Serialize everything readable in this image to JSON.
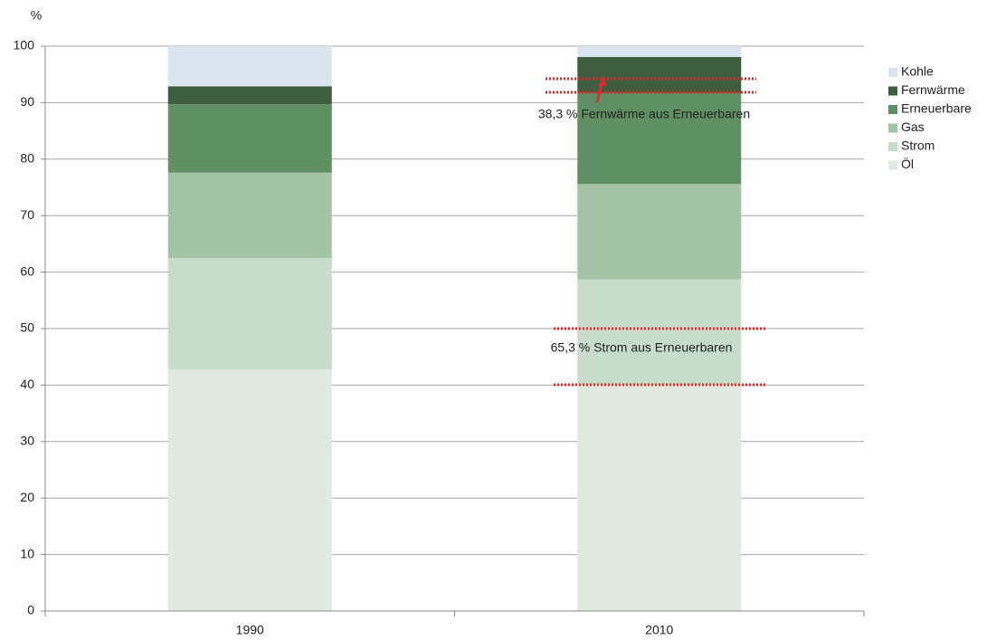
{
  "chart_data": {
    "type": "stacked_bar",
    "y_label": "%",
    "categories": [
      "1990",
      "2010"
    ],
    "series": [
      {
        "name": "Öl",
        "color": "#e0eae0",
        "values": [
          42.8,
          40.0
        ]
      },
      {
        "name": "Strom",
        "color": "#c8dccb",
        "values": [
          19.7,
          18.7
        ]
      },
      {
        "name": "Gas",
        "color": "#a5c4a6",
        "values": [
          15.1,
          16.9
        ]
      },
      {
        "name": "Erneuerbare",
        "color": "#5e9064",
        "values": [
          12.1,
          16.1
        ]
      },
      {
        "name": "Fernwärme",
        "color": "#3e5e3f",
        "values": [
          3.2,
          6.4
        ]
      },
      {
        "name": "Kohle",
        "color": "#dae5f0",
        "values": [
          7.1,
          1.9
        ]
      }
    ],
    "ylim": [
      0,
      100
    ],
    "yticks": [
      0,
      10,
      20,
      30,
      40,
      50,
      60,
      70,
      80,
      90,
      100
    ],
    "grid": true,
    "legend": "right",
    "annotations": [
      "38,3 % Fernwärme aus Erneuerbaren",
      "65,3 % Strom aus Erneuerbaren"
    ]
  }
}
